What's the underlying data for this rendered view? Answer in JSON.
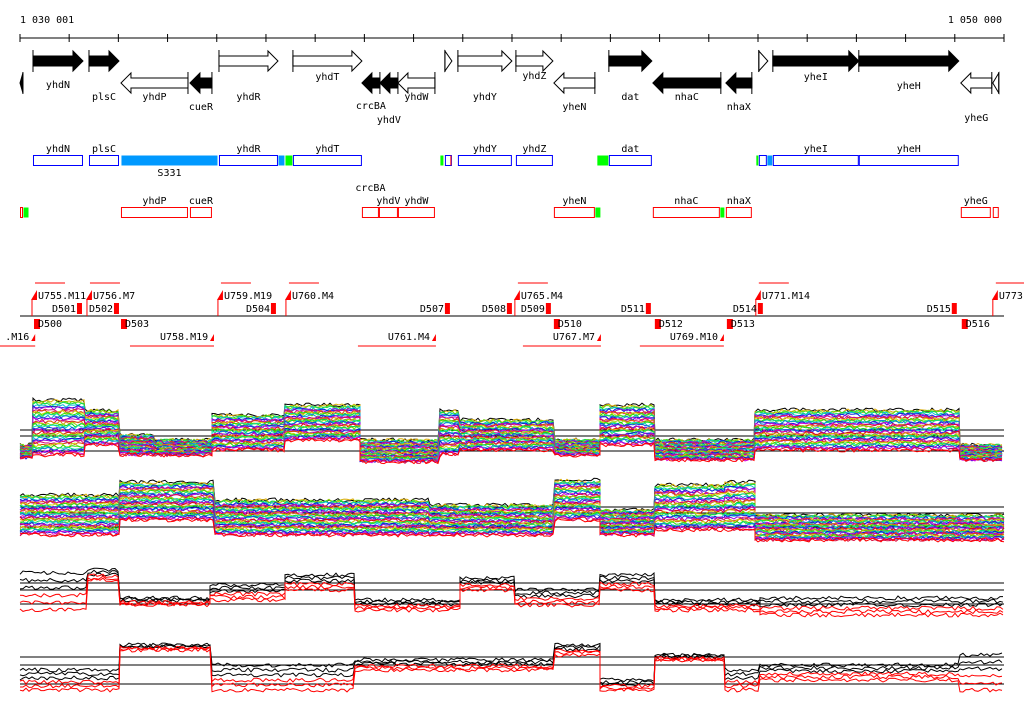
{
  "ruler": {
    "start_label": "1 030 001",
    "end_label": "1 050 000",
    "start_bp": 1030001,
    "end_bp": 1050000,
    "tick_step_bp": 1000
  },
  "colors": {
    "forward_box": "#0000ff",
    "reverse_box": "#ff0000",
    "highlight_blue": "#0099ff",
    "highlight_green": "#00ff00",
    "segment_red": "#ff0000",
    "axis": "#000000"
  },
  "genes": [
    {
      "name": "",
      "start": 1030001,
      "end": 1030060,
      "strand": "-",
      "fill": "black"
    },
    {
      "name": "yhdN",
      "start": 1030265,
      "end": 1031281,
      "strand": "+",
      "fill": "black"
    },
    {
      "name": "plsC",
      "start": 1031403,
      "end": 1032013,
      "strand": "+",
      "fill": "black"
    },
    {
      "name": "yhdP",
      "start": 1032053,
      "end": 1033415,
      "strand": "-",
      "fill": "white"
    },
    {
      "name": "cueR",
      "start": 1033455,
      "end": 1033902,
      "strand": "-",
      "fill": "black"
    },
    {
      "name": "yhdR",
      "start": 1034045,
      "end": 1035244,
      "strand": "+",
      "fill": "white"
    },
    {
      "name": "yhdT",
      "start": 1035548,
      "end": 1036950,
      "strand": "+",
      "fill": "white"
    },
    {
      "name": "crcBA",
      "start": 1036950,
      "end": 1037316,
      "strand": "-",
      "fill": "black"
    },
    {
      "name": "yhdV",
      "start": 1037316,
      "end": 1037682,
      "strand": "-",
      "fill": "black"
    },
    {
      "name": "yhdW",
      "start": 1037682,
      "end": 1038434,
      "strand": "-",
      "fill": "white"
    },
    {
      "name": "",
      "start": 1038637,
      "end": 1038779,
      "strand": "+",
      "fill": "white"
    },
    {
      "name": "yhdY",
      "start": 1038901,
      "end": 1039998,
      "strand": "+",
      "fill": "white"
    },
    {
      "name": "yhdZ",
      "start": 1040080,
      "end": 1040832,
      "strand": "+",
      "fill": "white"
    },
    {
      "name": "yheN",
      "start": 1040852,
      "end": 1041685,
      "strand": "-",
      "fill": "white"
    },
    {
      "name": "dat",
      "start": 1041969,
      "end": 1042843,
      "strand": "+",
      "fill": "black"
    },
    {
      "name": "nhaC",
      "start": 1042863,
      "end": 1044245,
      "strand": "-",
      "fill": "black"
    },
    {
      "name": "nhaX",
      "start": 1044347,
      "end": 1044875,
      "strand": "-",
      "fill": "black"
    },
    {
      "name": "",
      "start": 1045017,
      "end": 1045200,
      "strand": "+",
      "fill": "white"
    },
    {
      "name": "yheI",
      "start": 1045302,
      "end": 1047049,
      "strand": "+",
      "fill": "black"
    },
    {
      "name": "yheH",
      "start": 1047049,
      "end": 1049081,
      "strand": "+",
      "fill": "black"
    },
    {
      "name": "yheG",
      "start": 1049122,
      "end": 1049752,
      "strand": "-",
      "fill": "white"
    },
    {
      "name": "",
      "start": 1049772,
      "end": 1049894,
      "strand": "-",
      "fill": "white"
    }
  ],
  "forward_annotations": [
    {
      "name": "yhdN",
      "start": 1030265,
      "end": 1031281,
      "type": "box"
    },
    {
      "name": "plsC",
      "start": 1031403,
      "end": 1032013,
      "type": "box"
    },
    {
      "name": "S331",
      "start": 1032053,
      "end": 1034025,
      "type": "blue"
    },
    {
      "name": "yhdR",
      "start": 1034045,
      "end": 1035244,
      "type": "box"
    },
    {
      "name": "",
      "start": 1035244,
      "end": 1035386,
      "type": "blue"
    },
    {
      "name": "",
      "start": 1035386,
      "end": 1035548,
      "type": "green"
    },
    {
      "name": "yhdT",
      "start": 1035548,
      "end": 1036950,
      "type": "box"
    },
    {
      "name": "",
      "start": 1038535,
      "end": 1038617,
      "type": "green"
    },
    {
      "name": "",
      "start": 1038637,
      "end": 1038779,
      "type": "box"
    },
    {
      "name": "",
      "start": 1038738,
      "end": 1038779,
      "type": "red"
    },
    {
      "name": "yhdY",
      "start": 1038901,
      "end": 1039998,
      "type": "box"
    },
    {
      "name": "yhdZ",
      "start": 1040080,
      "end": 1040832,
      "type": "box"
    },
    {
      "name": "",
      "start": 1041725,
      "end": 1041969,
      "type": "green"
    },
    {
      "name": "dat",
      "start": 1041969,
      "end": 1042843,
      "type": "box"
    },
    {
      "name": "",
      "start": 1044956,
      "end": 1045017,
      "type": "green"
    },
    {
      "name": "",
      "start": 1045017,
      "end": 1045180,
      "type": "box"
    },
    {
      "name": "",
      "start": 1045180,
      "end": 1045302,
      "type": "blue"
    },
    {
      "name": "yheI",
      "start": 1045302,
      "end": 1047049,
      "type": "box"
    },
    {
      "name": "yheH",
      "start": 1047049,
      "end": 1049081,
      "type": "box"
    }
  ],
  "reverse_annotations": [
    {
      "name": "",
      "start": 1030001,
      "end": 1030062,
      "type": "box"
    },
    {
      "name": "",
      "start": 1030062,
      "end": 1030184,
      "type": "green"
    },
    {
      "name": "yhdP",
      "start": 1032053,
      "end": 1033415,
      "type": "box"
    },
    {
      "name": "cueR",
      "start": 1033455,
      "end": 1033902,
      "type": "box"
    },
    {
      "name": "crcBA",
      "start": 1036950,
      "end": 1037296,
      "type": "box"
    },
    {
      "name": "yhdV",
      "start": 1037296,
      "end": 1037682,
      "type": "box"
    },
    {
      "name": "yhdW",
      "start": 1037682,
      "end": 1038434,
      "type": "box"
    },
    {
      "name": "yheN",
      "start": 1040852,
      "end": 1041685,
      "type": "box"
    },
    {
      "name": "",
      "start": 1041685,
      "end": 1041807,
      "type": "green"
    },
    {
      "name": "nhaC",
      "start": 1042863,
      "end": 1044225,
      "type": "box"
    },
    {
      "name": "",
      "start": 1044225,
      "end": 1044327,
      "type": "green"
    },
    {
      "name": "nhaX",
      "start": 1044347,
      "end": 1044875,
      "type": "box"
    },
    {
      "name": "yheG",
      "start": 1049122,
      "end": 1049732,
      "type": "box"
    },
    {
      "name": "",
      "start": 1049772,
      "end": 1049894,
      "type": "box"
    }
  ],
  "segmentation": {
    "upper": [
      {
        "label": "U755.M11",
        "pos": 1030306
      },
      {
        "label": "U756.M7",
        "pos": 1031423
      },
      {
        "label": "U759.M19",
        "pos": 1034085
      },
      {
        "label": "U760.M4",
        "pos": 1035467
      },
      {
        "label": "U765.M4",
        "pos": 1040120
      },
      {
        "label": "U771.M14",
        "pos": 1045017
      },
      {
        "label": "U773.",
        "pos": 1049834
      }
    ],
    "upper_d": [
      {
        "label": "D501",
        "pos": 1030651
      },
      {
        "label": "D502",
        "pos": 1031403
      },
      {
        "label": "D504",
        "pos": 1034593
      },
      {
        "label": "D507",
        "pos": 1038129
      },
      {
        "label": "D508",
        "pos": 1039389
      },
      {
        "label": "D509",
        "pos": 1040181
      },
      {
        "label": "D511",
        "pos": 1042213
      },
      {
        "label": "D514",
        "pos": 1044489
      },
      {
        "label": "D515",
        "pos": 1048431
      }
    ],
    "lower_d": [
      {
        "label": "D500",
        "pos": 1030367
      },
      {
        "label": "D503",
        "pos": 1032135
      },
      {
        "label": "D510",
        "pos": 1040933
      },
      {
        "label": "D512",
        "pos": 1042985
      },
      {
        "label": "D513",
        "pos": 1044449
      },
      {
        "label": "D516",
        "pos": 1049223
      }
    ],
    "lower": [
      {
        "label": ".M16",
        "pos": 1029700
      },
      {
        "label": "U758.M19",
        "pos": 1032846
      },
      {
        "label": "U761.M4",
        "pos": 1037479
      },
      {
        "label": "U767.M7",
        "pos": 1040832
      },
      {
        "label": "U769.M10",
        "pos": 1043209
      }
    ]
  }
}
